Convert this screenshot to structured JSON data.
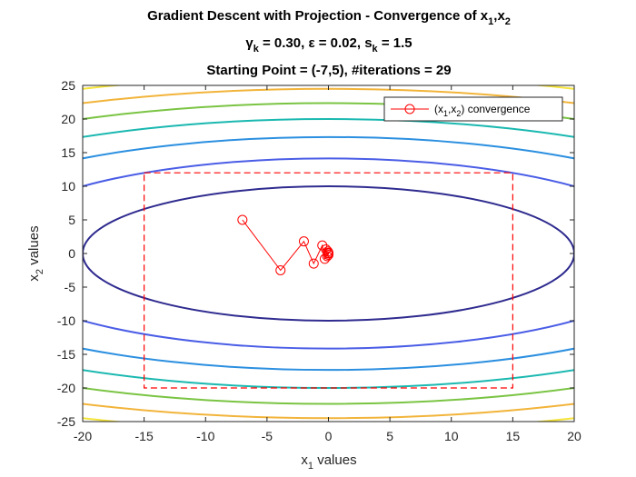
{
  "chart_data": {
    "type": "line",
    "title_lines": [
      {
        "main": "Gradient Descent with Projection - Convergence of x",
        "sub1": "1",
        "mid": ",x",
        "sub2": "2"
      },
      {
        "p1": "γ",
        "s1": "k",
        "p2": " = 0.30,  ε = 0.02, s",
        "s2": "k",
        "p3": " = 1.5"
      },
      {
        "text": "Starting Point = (-7,5),  #iterations = 29"
      }
    ],
    "xlabel": {
      "base": "x",
      "sub": "1",
      "rest": " values"
    },
    "ylabel": {
      "base": "x",
      "sub": "2",
      "rest": " values"
    },
    "xlim": [
      -20,
      20
    ],
    "ylim": [
      -25,
      25
    ],
    "xticks": [
      -20,
      -15,
      -10,
      -5,
      0,
      5,
      10,
      15,
      20
    ],
    "yticks": [
      -25,
      -20,
      -15,
      -10,
      -5,
      0,
      5,
      10,
      15,
      20,
      25
    ],
    "legend": {
      "location": "top-right",
      "label_base": "(x",
      "label_sub1": "1",
      "label_mid": ",x",
      "label_sub2": "2",
      "label_rest": ") convergence"
    },
    "constraint_box": {
      "x": [
        -15,
        15
      ],
      "y": [
        -20,
        12
      ],
      "color": "#ff0000",
      "style": "dashed"
    },
    "contour_levels": [
      {
        "c": 1,
        "color": "#2f2b8f"
      },
      {
        "c": 2,
        "color": "#4a5de6"
      },
      {
        "c": 3,
        "color": "#2b8fe0"
      },
      {
        "c": 4,
        "color": "#1ab8b0"
      },
      {
        "c": 5,
        "color": "#7ac443"
      },
      {
        "c": 6,
        "color": "#f2b43a"
      },
      {
        "c": 7,
        "color": "#f5e43a"
      }
    ],
    "contour_form": "(x1/20)^2 + (x2/10)^2 = c",
    "series": [
      {
        "name": "(x1,x2) convergence",
        "color": "#ff0000",
        "marker": "circle",
        "x": [
          -7,
          -3.9,
          -2.0,
          -1.2,
          -0.5,
          -0.3,
          -0.2,
          -0.1,
          -0.05,
          0.0,
          0.0,
          0.0
        ],
        "y": [
          5,
          -2.5,
          1.8,
          -1.5,
          1.2,
          -0.8,
          0.6,
          -0.4,
          0.3,
          -0.2,
          0.1,
          0.0
        ]
      }
    ]
  }
}
